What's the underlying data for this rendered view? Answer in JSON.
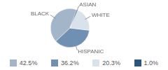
{
  "chart_data": {
    "type": "pie",
    "categories": [
      "BLACK",
      "HISPANIC",
      "WHITE",
      "ASIAN"
    ],
    "values": [
      42.5,
      36.2,
      20.3,
      1.0
    ],
    "value_labels": [
      "42.5%",
      "36.2%",
      "20.3%",
      "1.0%"
    ],
    "colors": [
      "#a3b5c9",
      "#6f8fb3",
      "#d9e1ea",
      "#2c5580"
    ],
    "legend": "bottom"
  }
}
